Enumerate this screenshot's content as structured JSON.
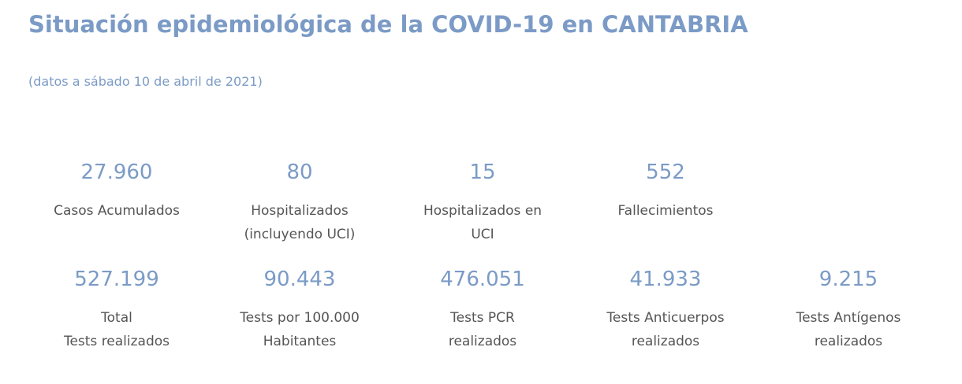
{
  "header": {
    "title": "Situación epidemiológica de la COVID-19 en CANTABRIA",
    "subtitle": "(datos a sábado 10 de abril de 2021)"
  },
  "stats_row_1": [
    {
      "value": "27.960",
      "label": "Casos Acumulados"
    },
    {
      "value": "80",
      "label": "Hospitalizados\n(incluyendo UCI)"
    },
    {
      "value": "15",
      "label": "Hospitalizados en\nUCI"
    },
    {
      "value": "552",
      "label": "Fallecimientos"
    }
  ],
  "stats_row_2": [
    {
      "value": "527.199",
      "label": "Total\nTests realizados"
    },
    {
      "value": "90.443",
      "label": "Tests por 100.000\nHabitantes"
    },
    {
      "value": "476.051",
      "label": "Tests PCR\nrealizados"
    },
    {
      "value": "41.933",
      "label": "Tests Anticuerpos\nrealizados"
    },
    {
      "value": "9.215",
      "label": "Tests Antígenos\nrealizados"
    }
  ],
  "colors": {
    "accent": "#7b9bc6",
    "label_text": "#555555",
    "background": "#ffffff"
  }
}
